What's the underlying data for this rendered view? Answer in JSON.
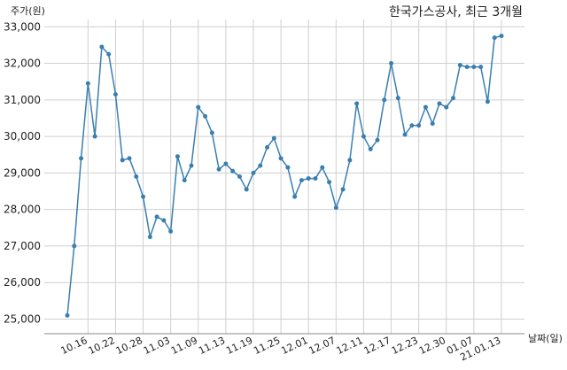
{
  "chart_data": {
    "type": "line",
    "title": "한국가스공사, 최근 3개월",
    "y_label": "주가(원)",
    "x_label": "날짜(일)",
    "categories": [
      null,
      null,
      null,
      "10.16",
      null,
      null,
      null,
      "10.22",
      null,
      null,
      null,
      "10.28",
      null,
      null,
      null,
      "11.03",
      null,
      null,
      null,
      "11.09",
      null,
      null,
      null,
      "11.13",
      null,
      null,
      null,
      "11.19",
      null,
      null,
      null,
      "11.25",
      null,
      null,
      null,
      "12.01",
      null,
      null,
      null,
      "12.07",
      null,
      null,
      null,
      "12.11",
      null,
      null,
      null,
      "12.17",
      null,
      null,
      null,
      "12.23",
      null,
      null,
      null,
      "12.30",
      null,
      null,
      null,
      "01.07",
      null,
      null,
      null,
      "21.01.13"
    ],
    "series": [
      {
        "name": "주가",
        "color": "#3a7fb0",
        "values": [
          25100,
          27000,
          29400,
          31450,
          30000,
          32450,
          32250,
          31150,
          29350,
          29400,
          28900,
          28350,
          27250,
          27800,
          27700,
          27400,
          29450,
          28800,
          29200,
          30800,
          30550,
          30100,
          29100,
          29250,
          29050,
          28900,
          28550,
          29000,
          29200,
          29700,
          29950,
          29400,
          29150,
          28350,
          28800,
          28850,
          28850,
          29150,
          28750,
          28050,
          28550,
          29350,
          30900,
          30000,
          29650,
          29900,
          31000,
          32000,
          31050,
          30050,
          30300,
          30300,
          30800,
          30350,
          30900,
          30800,
          31050,
          31950,
          31900,
          31900,
          31900,
          30950,
          32700,
          32750
        ]
      }
    ],
    "ylim": [
      24600,
      33200
    ],
    "yticks": [
      {
        "value": 25000,
        "label": "25,000"
      },
      {
        "value": 26000,
        "label": "26,000"
      },
      {
        "value": 27000,
        "label": "27,000"
      },
      {
        "value": 28000,
        "label": "28,000"
      },
      {
        "value": 29000,
        "label": "29,000"
      },
      {
        "value": 30000,
        "label": "30,000"
      },
      {
        "value": 31000,
        "label": "31,000"
      },
      {
        "value": 32000,
        "label": "32,000"
      },
      {
        "value": 33000,
        "label": "33,000"
      }
    ],
    "grid": true
  }
}
